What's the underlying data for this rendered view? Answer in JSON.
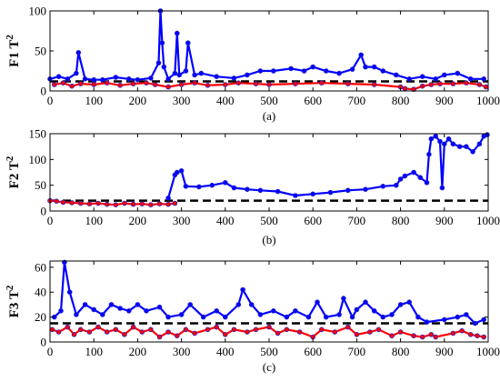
{
  "colors": {
    "above": "#0000ff",
    "below": "#ff0000",
    "marker_edge": "#2222cc",
    "threshold": "#000000",
    "axes": "#000000",
    "background": "#ffffff"
  },
  "chart_data": [
    {
      "type": "scatter",
      "ylabel": "F1 T2",
      "ylabel_base": "F1 T",
      "ylabel_sup": "2",
      "subtitle": "(a)",
      "xlim": [
        0,
        1000
      ],
      "ylim": [
        0,
        100
      ],
      "xticks": [
        0,
        100,
        200,
        300,
        400,
        500,
        600,
        700,
        800,
        900,
        1000
      ],
      "yticks": [
        0,
        50,
        100
      ],
      "threshold": 12,
      "threshold_style": "dashed",
      "series": [
        {
          "color": "#0000ff",
          "points": [
            [
              0,
              15
            ],
            [
              20,
              18
            ],
            [
              40,
              15
            ],
            [
              60,
              22
            ],
            [
              65,
              48
            ],
            [
              80,
              15
            ],
            [
              100,
              14
            ],
            [
              120,
              14
            ],
            [
              150,
              17
            ],
            [
              180,
              15
            ],
            [
              200,
              14
            ],
            [
              230,
              16
            ],
            [
              248,
              35
            ],
            [
              252,
              100
            ],
            [
              256,
              60
            ],
            [
              260,
              30
            ],
            [
              270,
              15
            ],
            [
              285,
              22
            ],
            [
              290,
              72
            ],
            [
              295,
              20
            ],
            [
              310,
              25
            ],
            [
              315,
              60
            ],
            [
              330,
              20
            ],
            [
              345,
              22
            ],
            [
              380,
              18
            ],
            [
              420,
              16
            ],
            [
              450,
              20
            ],
            [
              480,
              25
            ],
            [
              510,
              25
            ],
            [
              550,
              28
            ],
            [
              580,
              25
            ],
            [
              600,
              30
            ],
            [
              630,
              25
            ],
            [
              660,
              22
            ],
            [
              690,
              27
            ],
            [
              710,
              45
            ],
            [
              720,
              30
            ],
            [
              740,
              30
            ],
            [
              760,
              25
            ],
            [
              790,
              20
            ],
            [
              820,
              15
            ],
            [
              850,
              18
            ],
            [
              880,
              15
            ],
            [
              900,
              20
            ],
            [
              930,
              22
            ],
            [
              960,
              15
            ],
            [
              990,
              15
            ]
          ]
        },
        {
          "color": "#ff0000",
          "points": [
            [
              10,
              8
            ],
            [
              30,
              10
            ],
            [
              50,
              6
            ],
            [
              70,
              9
            ],
            [
              100,
              8
            ],
            [
              130,
              10
            ],
            [
              160,
              7
            ],
            [
              190,
              9
            ],
            [
              220,
              10
            ],
            [
              240,
              8
            ],
            [
              270,
              5
            ],
            [
              300,
              8
            ],
            [
              330,
              10
            ],
            [
              360,
              7
            ],
            [
              400,
              8
            ],
            [
              430,
              10
            ],
            [
              470,
              9
            ],
            [
              500,
              8
            ],
            [
              560,
              9
            ],
            [
              620,
              10
            ],
            [
              680,
              9
            ],
            [
              740,
              8
            ],
            [
              800,
              5
            ],
            [
              810,
              3
            ],
            [
              830,
              2
            ],
            [
              850,
              6
            ],
            [
              870,
              8
            ],
            [
              890,
              9
            ],
            [
              920,
              9
            ],
            [
              950,
              10
            ],
            [
              980,
              8
            ],
            [
              995,
              5
            ]
          ]
        }
      ]
    },
    {
      "type": "scatter",
      "ylabel": "F2 T2",
      "ylabel_base": "F2 T",
      "ylabel_sup": "2",
      "subtitle": "(b)",
      "xlim": [
        0,
        1000
      ],
      "ylim": [
        0,
        150
      ],
      "xticks": [
        0,
        100,
        200,
        300,
        400,
        500,
        600,
        700,
        800,
        900,
        1000
      ],
      "yticks": [
        0,
        50,
        100,
        150
      ],
      "threshold": 20,
      "threshold_style": "dashed",
      "series": [
        {
          "color": "#0000ff",
          "points": [
            [
              270,
              25
            ],
            [
              285,
              70
            ],
            [
              290,
              75
            ],
            [
              300,
              78
            ],
            [
              310,
              48
            ],
            [
              340,
              47
            ],
            [
              370,
              50
            ],
            [
              400,
              55
            ],
            [
              420,
              45
            ],
            [
              450,
              42
            ],
            [
              480,
              40
            ],
            [
              520,
              38
            ],
            [
              560,
              30
            ],
            [
              600,
              33
            ],
            [
              640,
              36
            ],
            [
              680,
              40
            ],
            [
              720,
              42
            ],
            [
              760,
              48
            ],
            [
              790,
              50
            ],
            [
              800,
              62
            ],
            [
              810,
              68
            ],
            [
              830,
              75
            ],
            [
              845,
              65
            ],
            [
              860,
              55
            ],
            [
              865,
              110
            ],
            [
              870,
              140
            ],
            [
              880,
              145
            ],
            [
              890,
              135
            ],
            [
              895,
              45
            ],
            [
              900,
              130
            ],
            [
              910,
              140
            ],
            [
              920,
              130
            ],
            [
              935,
              125
            ],
            [
              950,
              125
            ],
            [
              965,
              115
            ],
            [
              980,
              130
            ],
            [
              990,
              145
            ],
            [
              998,
              148
            ]
          ]
        },
        {
          "color": "#ff0000",
          "points": [
            [
              0,
              20
            ],
            [
              15,
              19
            ],
            [
              30,
              17
            ],
            [
              50,
              16
            ],
            [
              70,
              15
            ],
            [
              90,
              14
            ],
            [
              110,
              15
            ],
            [
              130,
              13
            ],
            [
              150,
              12
            ],
            [
              170,
              15
            ],
            [
              190,
              13
            ],
            [
              210,
              14
            ],
            [
              230,
              12
            ],
            [
              250,
              14
            ],
            [
              270,
              13
            ],
            [
              285,
              15
            ]
          ]
        }
      ]
    },
    {
      "type": "scatter",
      "ylabel": "F3 T2",
      "ylabel_base": "F3 T",
      "ylabel_sup": "2",
      "subtitle": "(c)",
      "xlim": [
        0,
        1000
      ],
      "ylim": [
        0,
        65
      ],
      "xticks": [
        0,
        100,
        200,
        300,
        400,
        500,
        600,
        700,
        800,
        900,
        1000
      ],
      "yticks": [
        0,
        20,
        40,
        60
      ],
      "threshold": 15,
      "threshold_style": "dashed",
      "series": [
        {
          "color": "#0000ff",
          "points": [
            [
              10,
              20
            ],
            [
              25,
              25
            ],
            [
              33,
              64
            ],
            [
              45,
              40
            ],
            [
              60,
              22
            ],
            [
              80,
              30
            ],
            [
              100,
              26
            ],
            [
              120,
              22
            ],
            [
              140,
              30
            ],
            [
              160,
              27
            ],
            [
              180,
              25
            ],
            [
              200,
              30
            ],
            [
              220,
              25
            ],
            [
              250,
              28
            ],
            [
              270,
              20
            ],
            [
              300,
              22
            ],
            [
              320,
              30
            ],
            [
              350,
              20
            ],
            [
              380,
              25
            ],
            [
              400,
              20
            ],
            [
              430,
              30
            ],
            [
              440,
              42
            ],
            [
              460,
              30
            ],
            [
              480,
              22
            ],
            [
              510,
              25
            ],
            [
              540,
              20
            ],
            [
              560,
              25
            ],
            [
              590,
              20
            ],
            [
              610,
              32
            ],
            [
              630,
              20
            ],
            [
              660,
              22
            ],
            [
              670,
              35
            ],
            [
              690,
              20
            ],
            [
              700,
              26
            ],
            [
              720,
              32
            ],
            [
              740,
              25
            ],
            [
              760,
              20
            ],
            [
              780,
              22
            ],
            [
              800,
              30
            ],
            [
              820,
              32
            ],
            [
              840,
              20
            ],
            [
              860,
              16
            ],
            [
              900,
              18
            ],
            [
              930,
              20
            ],
            [
              950,
              22
            ],
            [
              970,
              15
            ],
            [
              990,
              18
            ]
          ]
        },
        {
          "color": "#ff0000",
          "points": [
            [
              5,
              10
            ],
            [
              20,
              8
            ],
            [
              40,
              12
            ],
            [
              55,
              6
            ],
            [
              70,
              10
            ],
            [
              90,
              8
            ],
            [
              110,
              12
            ],
            [
              130,
              8
            ],
            [
              150,
              10
            ],
            [
              170,
              6
            ],
            [
              190,
              12
            ],
            [
              210,
              8
            ],
            [
              230,
              10
            ],
            [
              250,
              4
            ],
            [
              270,
              8
            ],
            [
              290,
              5
            ],
            [
              310,
              10
            ],
            [
              330,
              7
            ],
            [
              360,
              10
            ],
            [
              380,
              12
            ],
            [
              400,
              6
            ],
            [
              420,
              10
            ],
            [
              450,
              8
            ],
            [
              470,
              10
            ],
            [
              500,
              12
            ],
            [
              520,
              7
            ],
            [
              540,
              10
            ],
            [
              570,
              8
            ],
            [
              600,
              4
            ],
            [
              620,
              10
            ],
            [
              650,
              8
            ],
            [
              680,
              12
            ],
            [
              700,
              6
            ],
            [
              730,
              8
            ],
            [
              750,
              10
            ],
            [
              780,
              5
            ],
            [
              800,
              8
            ],
            [
              830,
              5
            ],
            [
              850,
              4
            ],
            [
              870,
              6
            ],
            [
              880,
              4
            ],
            [
              920,
              7
            ],
            [
              940,
              9
            ],
            [
              960,
              6
            ],
            [
              975,
              5
            ],
            [
              990,
              4
            ]
          ]
        }
      ]
    }
  ]
}
